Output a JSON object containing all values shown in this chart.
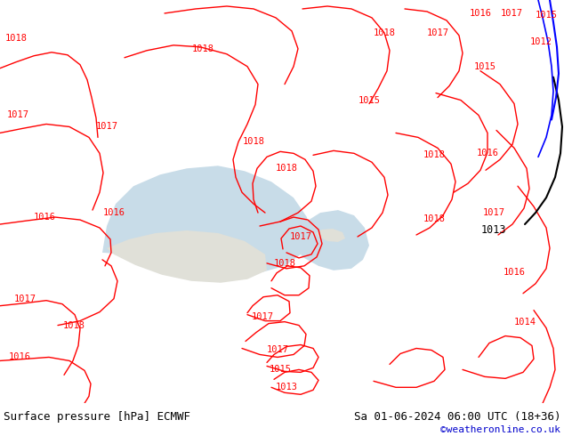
{
  "title_left": "Surface pressure [hPa] ECMWF",
  "title_right": "Sa 01-06-2024 06:00 UTC (18+36)",
  "watermark": "©weatheronline.co.uk",
  "bg_color": "#7ec850",
  "land_color": "#7ec850",
  "sea_color": "#c8dce8",
  "light_land_color": "#e0e0d8",
  "contour_color_red": "#ff0000",
  "contour_color_blue": "#0000ff",
  "contour_color_black": "#000000",
  "bottom_bar_color": "#ffffff",
  "bottom_text_color": "#000000",
  "watermark_color": "#0000cc",
  "figsize": [
    6.34,
    4.9
  ],
  "dpi": 100
}
